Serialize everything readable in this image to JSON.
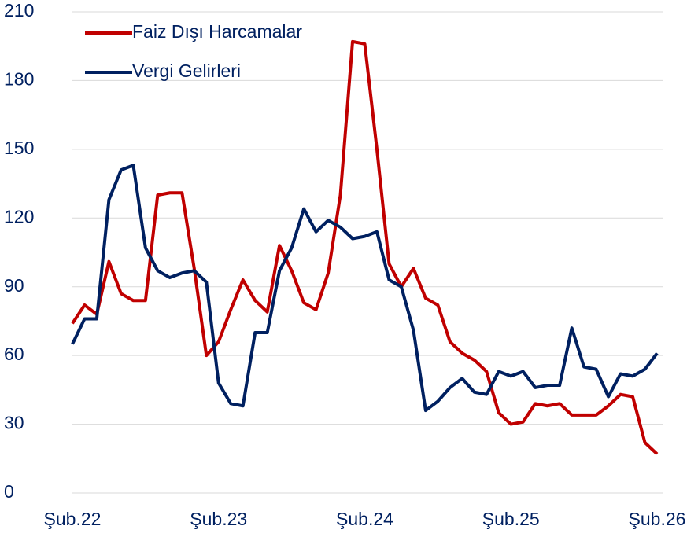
{
  "chart_data": {
    "type": "line",
    "categories": [
      "Şub.22",
      null,
      null,
      null,
      null,
      null,
      null,
      null,
      null,
      null,
      null,
      null,
      "Şub.23",
      null,
      null,
      null,
      null,
      null,
      null,
      null,
      null,
      null,
      null,
      null,
      "Şub.24",
      null,
      null,
      null,
      null,
      null,
      null,
      null,
      null,
      null,
      null,
      null,
      "Şub.25",
      null,
      null,
      null,
      null,
      null,
      null,
      null,
      null,
      null,
      null,
      null,
      "Şub.26"
    ],
    "series": [
      {
        "name": "Faiz Dışı Harcamalar",
        "color": "#c00000",
        "values": [
          74,
          82,
          78,
          101,
          87,
          84,
          84,
          130,
          131,
          131,
          98,
          60,
          66,
          80,
          93,
          84,
          79,
          108,
          97,
          83,
          80,
          96,
          130,
          197,
          196,
          150,
          100,
          90,
          98,
          85,
          82,
          66,
          61,
          58,
          53,
          35,
          30,
          31,
          39,
          38,
          39,
          34,
          34,
          34,
          38,
          43,
          42,
          22,
          17
        ]
      },
      {
        "name": "Vergi Gelirleri",
        "color": "#002060",
        "values": [
          65,
          76,
          76,
          128,
          141,
          143,
          107,
          97,
          94,
          96,
          97,
          92,
          48,
          39,
          38,
          70,
          70,
          97,
          107,
          124,
          114,
          119,
          116,
          111,
          112,
          114,
          93,
          90,
          71,
          36,
          40,
          46,
          50,
          44,
          43,
          53,
          51,
          53,
          46,
          47,
          47,
          72,
          55,
          54,
          42,
          52,
          51,
          54,
          61
        ]
      }
    ],
    "ylim": [
      0,
      210
    ],
    "yticks": [
      0,
      30,
      60,
      90,
      120,
      150,
      180,
      210
    ],
    "grid": true
  }
}
